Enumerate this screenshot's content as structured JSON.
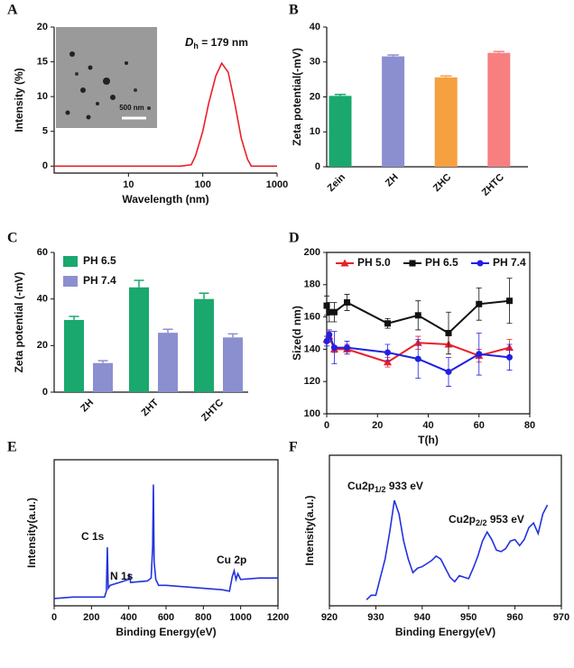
{
  "chart_data": [
    {
      "type": "line",
      "panel": "A",
      "xlabel": "Wavelength (nm)",
      "ylabel": "Intensity (%)",
      "xscale": "log",
      "xlim": [
        1,
        1000
      ],
      "xticks": [
        10,
        100,
        1000
      ],
      "ylim": [
        -1,
        20
      ],
      "yticks": [
        0,
        5,
        10,
        15,
        20
      ],
      "x": [
        1,
        10,
        50,
        70,
        80,
        100,
        120,
        150,
        180,
        220,
        270,
        330,
        400,
        450,
        1000
      ],
      "values": [
        0,
        0,
        0,
        0.2,
        1.5,
        5,
        9,
        13,
        14.8,
        13.5,
        9,
        4,
        1,
        0,
        0
      ],
      "color": "#e8202a",
      "inset_label": "500 nm",
      "annotations": [
        {
          "parts": [
            "D",
            "h",
            " = 179 nm"
          ]
        }
      ]
    },
    {
      "type": "bar",
      "panel": "B",
      "ylabel": "Zeta potential(-mV)",
      "categories": [
        "Zein",
        "ZH",
        "ZHC",
        "ZHTC"
      ],
      "values": [
        20.3,
        31.6,
        25.6,
        32.6
      ],
      "errors": [
        0.4,
        0.4,
        0.4,
        0.4
      ],
      "colors": [
        "#1aa86e",
        "#8b8fd0",
        "#f7a040",
        "#f77f80"
      ],
      "ylim": [
        0,
        40
      ],
      "yticks": [
        0,
        10,
        20,
        30,
        40
      ]
    },
    {
      "type": "bar",
      "panel": "C",
      "ylabel": "Zeta potential (-mV)",
      "legend": "top-left",
      "categories": [
        "ZH",
        "ZHT",
        "ZHTC"
      ],
      "ylim": [
        0,
        60
      ],
      "yticks": [
        0,
        20,
        40,
        60
      ],
      "series": [
        {
          "name": "PH 6.5",
          "color": "#1aa86e",
          "values": [
            31,
            45,
            40
          ],
          "errors": [
            1.5,
            3,
            2.5
          ]
        },
        {
          "name": "PH 7.4",
          "color": "#8b8fd0",
          "values": [
            12.5,
            25.5,
            23.5
          ],
          "errors": [
            1,
            1.5,
            1.5
          ]
        }
      ]
    },
    {
      "type": "line",
      "panel": "D",
      "xlabel": "T(h)",
      "ylabel": "Size(d nm)",
      "legend": "top",
      "xlim": [
        0,
        80
      ],
      "xticks": [
        0,
        20,
        40,
        60,
        80
      ],
      "ylim": [
        100,
        200
      ],
      "yticks": [
        100,
        120,
        140,
        160,
        180,
        200
      ],
      "x": [
        0,
        1,
        3,
        8,
        24,
        36,
        48,
        60,
        72
      ],
      "series": [
        {
          "name": "PH 5.0",
          "color": "#e8202a",
          "marker": "triangle",
          "values": [
            146,
            148,
            140,
            140,
            132,
            144,
            143,
            136,
            141
          ],
          "errors": [
            2,
            3,
            2,
            3,
            3,
            4,
            6,
            4,
            5
          ]
        },
        {
          "name": "PH 6.5",
          "color": "#111111",
          "marker": "square",
          "values": [
            167,
            163,
            163,
            169,
            156,
            161,
            150,
            168,
            170
          ],
          "errors": [
            6,
            6,
            6,
            5,
            3,
            9,
            13,
            10,
            14
          ]
        },
        {
          "name": "PH 7.4",
          "color": "#2020e0",
          "marker": "circle",
          "values": [
            145,
            149,
            141,
            141,
            138,
            134,
            126,
            137,
            135
          ],
          "errors": [
            3,
            3,
            10,
            4,
            5,
            12,
            9,
            13,
            8
          ]
        }
      ]
    },
    {
      "type": "line",
      "panel": "E",
      "xlabel": "Binding Energy(eV)",
      "ylabel": "Intensity(a.u.)",
      "xlim": [
        0,
        1200
      ],
      "xticks": [
        0,
        200,
        400,
        600,
        800,
        1000,
        1200
      ],
      "ylim": [
        0,
        100
      ],
      "x": [
        0,
        100,
        200,
        270,
        280,
        285,
        290,
        300,
        350,
        398,
        402,
        410,
        500,
        520,
        528,
        532,
        536,
        545,
        560,
        600,
        700,
        800,
        900,
        940,
        955,
        965,
        975,
        985,
        1000,
        1100,
        1200
      ],
      "values": [
        5,
        6,
        6,
        6,
        10,
        40,
        12,
        14,
        16,
        18,
        22,
        16,
        17,
        19,
        40,
        83,
        30,
        18,
        14,
        14,
        13,
        12,
        11,
        10,
        20,
        24,
        18,
        22,
        18,
        19,
        19
      ],
      "color": "#2233dd",
      "annotations": [
        {
          "text": "C 1s"
        },
        {
          "text": "N 1s"
        },
        {
          "text": "Cu 2p"
        }
      ]
    },
    {
      "type": "line",
      "panel": "F",
      "xlabel": "Binding Energy(eV)",
      "ylabel": "Intensity(a.u.)",
      "xlim": [
        920,
        970
      ],
      "xticks": [
        920,
        930,
        940,
        950,
        960,
        970
      ],
      "ylim": [
        0,
        100
      ],
      "x": [
        928,
        929,
        930,
        931,
        932,
        933,
        934,
        935,
        936,
        937,
        938,
        939,
        940,
        941,
        942,
        943,
        944,
        945,
        946,
        947,
        948,
        949,
        950,
        951,
        952,
        953,
        954,
        955,
        956,
        957,
        958,
        959,
        960,
        961,
        962,
        963,
        964,
        965,
        966,
        967
      ],
      "values": [
        4,
        7,
        7,
        19,
        31,
        49,
        70,
        61,
        43,
        31,
        22,
        25,
        26,
        28,
        30,
        33,
        31,
        25,
        19,
        16,
        20,
        19,
        18,
        25,
        33,
        43,
        49,
        44,
        37,
        36,
        38,
        43,
        44,
        40,
        44,
        52,
        55,
        48,
        61,
        67
      ],
      "color": "#2233dd",
      "annotations": [
        {
          "parts": [
            "Cu2p",
            "1/2",
            " 933 eV"
          ]
        },
        {
          "parts": [
            "Cu2p",
            "2/2",
            " 953 eV"
          ]
        }
      ]
    }
  ]
}
